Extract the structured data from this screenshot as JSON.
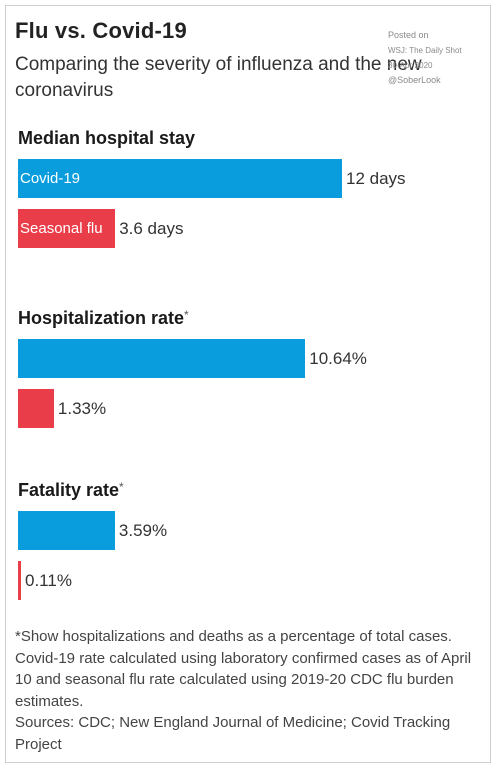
{
  "header": {
    "title": "Flu vs. Covid-19",
    "subtitle": "Comparing the severity of influenza and the new coronavirus"
  },
  "watermark": {
    "line1": "Posted on",
    "line2": "WSJ: The Daily Shot",
    "line3": "30-Apr-2020",
    "line4": "@SoberLook"
  },
  "colors": {
    "covid": "#0a9ddd",
    "flu": "#ea3d4a"
  },
  "chart_data": [
    {
      "type": "bar",
      "title": "Median hospital stay",
      "unit": "days",
      "series": [
        {
          "name": "Covid-19",
          "value": 12,
          "label": "12 days"
        },
        {
          "name": "Seasonal flu",
          "value": 3.6,
          "label": "3.6 days"
        }
      ]
    },
    {
      "type": "bar",
      "title": "Hospitalization rate",
      "title_suffix": "*",
      "unit": "%",
      "series": [
        {
          "value": 10.64,
          "label": "10.64%"
        },
        {
          "value": 1.33,
          "label": "1.33%"
        }
      ]
    },
    {
      "type": "bar",
      "title": "Fatality rate",
      "title_suffix": "*",
      "unit": "%",
      "series": [
        {
          "value": 3.59,
          "label": "3.59%"
        },
        {
          "value": 0.11,
          "label": "0.11%"
        }
      ]
    }
  ],
  "footnote": {
    "note": "*Show hospitalizations and deaths as a percentage of total cases. Covid-19 rate calculated using laboratory confirmed cases as of April 10 and seasonal flu rate calculated using 2019-20 CDC flu burden estimates.",
    "sources": "Sources: CDC; New England Journal of Medicine; Covid Tracking Project"
  }
}
